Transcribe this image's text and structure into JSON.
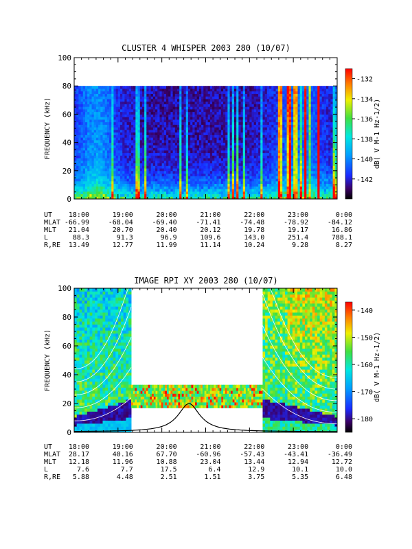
{
  "chart_data": [
    {
      "type": "heatmap",
      "title": "CLUSTER 4 WHISPER 2003 280 (10/07)",
      "ylabel": "FREQUENCY (kHz)",
      "ylim": [
        0,
        100
      ],
      "yticks": [
        "0",
        "20",
        "40",
        "60",
        "80",
        "100"
      ],
      "x_ticks": [
        "18:00",
        "19:00",
        "20:00",
        "21:00",
        "22:00",
        "23:00",
        "0:00"
      ],
      "colorbar": {
        "label": "dB( V M-1 Hz-1/2)",
        "ticks": [
          "-132",
          "-134",
          "-136",
          "-138",
          "-140",
          "-142"
        ],
        "range": [
          -144,
          -131
        ]
      },
      "data_coverage": {
        "freq_max_khz": 80
      },
      "ephemeris": {
        "labels": [
          "UT",
          "MLAT",
          "MLT",
          "L",
          "R,RE"
        ],
        "rows": [
          [
            "18:00",
            "19:00",
            "20:00",
            "21:00",
            "22:00",
            "23:00",
            "0:00"
          ],
          [
            "-66.99",
            "-68.04",
            "-69.40",
            "-71.41",
            "-74.48",
            "-78.92",
            "-84.12"
          ],
          [
            "21.04",
            "20.70",
            "20.40",
            "20.12",
            "19.78",
            "19.17",
            "16.86"
          ],
          [
            "88.3",
            "91.3",
            "96.9",
            "109.6",
            "143.0",
            "251.4",
            "788.1"
          ],
          [
            "13.49",
            "12.77",
            "11.99",
            "11.14",
            "10.24",
            "9.28",
            "8.27"
          ]
        ]
      }
    },
    {
      "type": "heatmap",
      "title": "IMAGE RPI XY 2003 280 (10/07)",
      "ylabel": "FREQUENCY (kHz)",
      "ylim": [
        0,
        100
      ],
      "yticks": [
        "0",
        "20",
        "40",
        "60",
        "80",
        "100"
      ],
      "x_ticks": [
        "18:00",
        "19:00",
        "20:00",
        "21:00",
        "22:00",
        "23:00",
        "0:00"
      ],
      "colorbar": {
        "label": "dB( V M-1 Hz-1/2)",
        "ticks": [
          "-140",
          "-150",
          "-160",
          "-170",
          "-180"
        ],
        "range": [
          -185,
          -137
        ]
      },
      "data_coverage": {
        "left_block_hours": [
          0,
          1.3
        ],
        "middle_block_hours": [
          1.3,
          4.3
        ],
        "middle_block_freq_khz": [
          17,
          33
        ],
        "right_block_hours": [
          4.3,
          6.0
        ]
      },
      "overlay_curve_peak": {
        "hour": 2.62,
        "freq_khz": 20
      },
      "ephemeris": {
        "labels": [
          "UT",
          "MLAT",
          "MLT",
          "L",
          "R,RE"
        ],
        "rows": [
          [
            "18:00",
            "19:00",
            "20:00",
            "21:00",
            "22:00",
            "23:00",
            "0:00"
          ],
          [
            "28.17",
            "40.16",
            "67.70",
            "-60.96",
            "-57.43",
            "-43.41",
            "-36.49"
          ],
          [
            "12.18",
            "11.96",
            "10.88",
            "23.04",
            "13.44",
            "12.94",
            "12.72"
          ],
          [
            "7.6",
            "7.7",
            "17.5",
            "6.4",
            "12.9",
            "10.1",
            "10.0"
          ],
          [
            "5.88",
            "4.48",
            "2.51",
            "1.51",
            "3.75",
            "5.35",
            "6.48"
          ]
        ]
      }
    }
  ]
}
